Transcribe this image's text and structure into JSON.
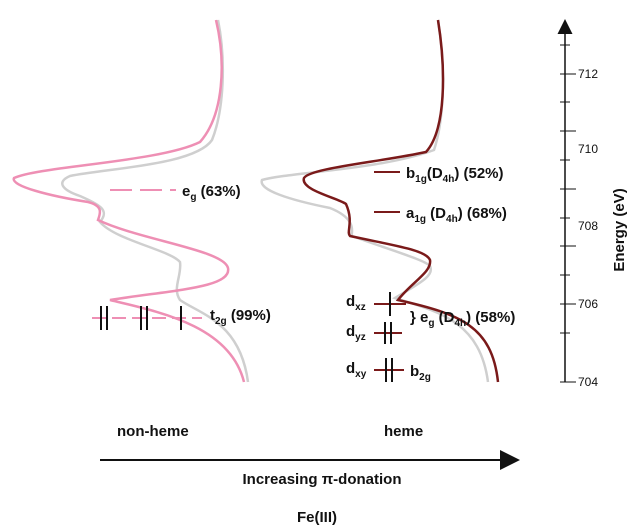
{
  "colors": {
    "non_heme": "#ee8fb4",
    "heme": "#7a1a1a",
    "reference": "#cfcfcf",
    "text": "#111111"
  },
  "energy_axis": {
    "label": "Energy (eV)",
    "ticks": [
      "712",
      "710",
      "708",
      "706",
      "704"
    ]
  },
  "non_heme": {
    "eg_label": "e",
    "eg_sub": "g",
    "eg_pct": " (63%)",
    "t2g_label": "t",
    "t2g_sub": "2g",
    "t2g_pct": " (99%)",
    "column_label": "non-heme"
  },
  "heme": {
    "b1g": {
      "main": "b",
      "sub": "1g",
      "paren": "(D",
      "paren_sub": "4h",
      "tail": ")  (52%)"
    },
    "a1g": {
      "main": "a",
      "sub": "1g",
      "paren": " (D",
      "paren_sub": "4h",
      "tail": ") (68%)"
    },
    "dxz": {
      "main": "d",
      "sub": "xz"
    },
    "dyz": {
      "main": "d",
      "sub": "yz"
    },
    "dxy": {
      "main": "d",
      "sub": "xy"
    },
    "eg_group": {
      "brace": "} e",
      "sub": "g",
      "paren": " (D",
      "paren_sub": "4h",
      "tail": ") (58%)"
    },
    "b2g": {
      "main": "b",
      "sub": "2g"
    },
    "column_label": "heme"
  },
  "bottom": {
    "arrow_label": "Increasing π-donation",
    "metal": "Fe(III)"
  }
}
